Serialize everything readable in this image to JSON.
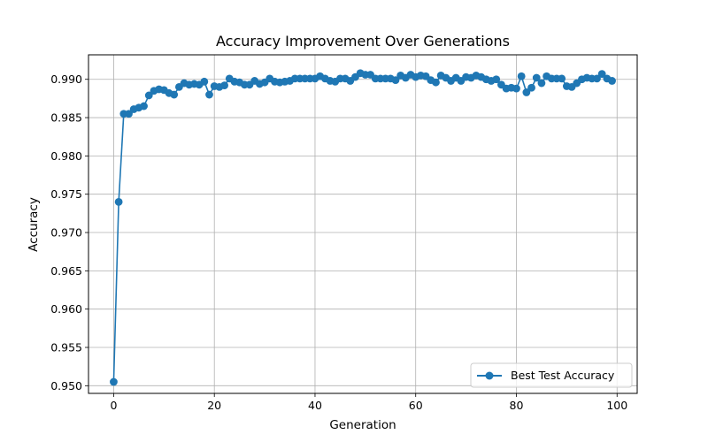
{
  "chart_data": {
    "type": "line",
    "title": "Accuracy Improvement Over Generations",
    "xlabel": "Generation",
    "ylabel": "Accuracy",
    "xlim": [
      -5,
      104
    ],
    "ylim": [
      0.949,
      0.9932
    ],
    "xticks": [
      0,
      20,
      40,
      60,
      80,
      100
    ],
    "yticks": [
      0.95,
      0.955,
      0.96,
      0.965,
      0.97,
      0.975,
      0.98,
      0.985,
      0.99
    ],
    "xtick_labels": [
      "0",
      "20",
      "40",
      "60",
      "80",
      "100"
    ],
    "ytick_labels": [
      "0.950",
      "0.955",
      "0.960",
      "0.965",
      "0.970",
      "0.975",
      "0.980",
      "0.985",
      "0.990"
    ],
    "grid": true,
    "legend_position": "lower-right",
    "colors": {
      "series": "#1f77b4",
      "grid": "#b0b0b0",
      "axis": "#000000"
    },
    "series": [
      {
        "name": "Best Test Accuracy",
        "x": [
          0,
          1,
          2,
          3,
          4,
          5,
          6,
          7,
          8,
          9,
          10,
          11,
          12,
          13,
          14,
          15,
          16,
          17,
          18,
          19,
          20,
          21,
          22,
          23,
          24,
          25,
          26,
          27,
          28,
          29,
          30,
          31,
          32,
          33,
          34,
          35,
          36,
          37,
          38,
          39,
          40,
          41,
          42,
          43,
          44,
          45,
          46,
          47,
          48,
          49,
          50,
          51,
          52,
          53,
          54,
          55,
          56,
          57,
          58,
          59,
          60,
          61,
          62,
          63,
          64,
          65,
          66,
          67,
          68,
          69,
          70,
          71,
          72,
          73,
          74,
          75,
          76,
          77,
          78,
          79,
          80,
          81,
          82,
          83,
          84,
          85,
          86,
          87,
          88,
          89,
          90,
          91,
          92,
          93,
          94,
          95,
          96,
          97,
          98,
          99
        ],
        "values": [
          0.9505,
          0.974,
          0.9855,
          0.9855,
          0.9861,
          0.9863,
          0.9865,
          0.9879,
          0.9885,
          0.9887,
          0.9886,
          0.9882,
          0.988,
          0.989,
          0.9895,
          0.9893,
          0.9894,
          0.9893,
          0.9897,
          0.988,
          0.9891,
          0.989,
          0.9892,
          0.9901,
          0.9897,
          0.9896,
          0.9893,
          0.9893,
          0.9898,
          0.9894,
          0.9896,
          0.9901,
          0.9897,
          0.9896,
          0.9897,
          0.9898,
          0.9901,
          0.9901,
          0.9901,
          0.9901,
          0.9901,
          0.9904,
          0.9901,
          0.9898,
          0.9897,
          0.9901,
          0.9901,
          0.9898,
          0.9903,
          0.9908,
          0.9906,
          0.9906,
          0.9901,
          0.9901,
          0.9901,
          0.9901,
          0.9899,
          0.9905,
          0.9902,
          0.9906,
          0.9903,
          0.9905,
          0.9904,
          0.9899,
          0.9896,
          0.9905,
          0.9902,
          0.9898,
          0.9902,
          0.9898,
          0.9903,
          0.9902,
          0.9905,
          0.9903,
          0.99,
          0.9898,
          0.99,
          0.9893,
          0.9888,
          0.9889,
          0.9888,
          0.9904,
          0.9883,
          0.9889,
          0.9902,
          0.9895,
          0.9904,
          0.9901,
          0.9901,
          0.9901,
          0.9891,
          0.989,
          0.9895,
          0.99,
          0.9902,
          0.9901,
          0.9901,
          0.9907,
          0.9901,
          0.9898
        ]
      }
    ]
  }
}
